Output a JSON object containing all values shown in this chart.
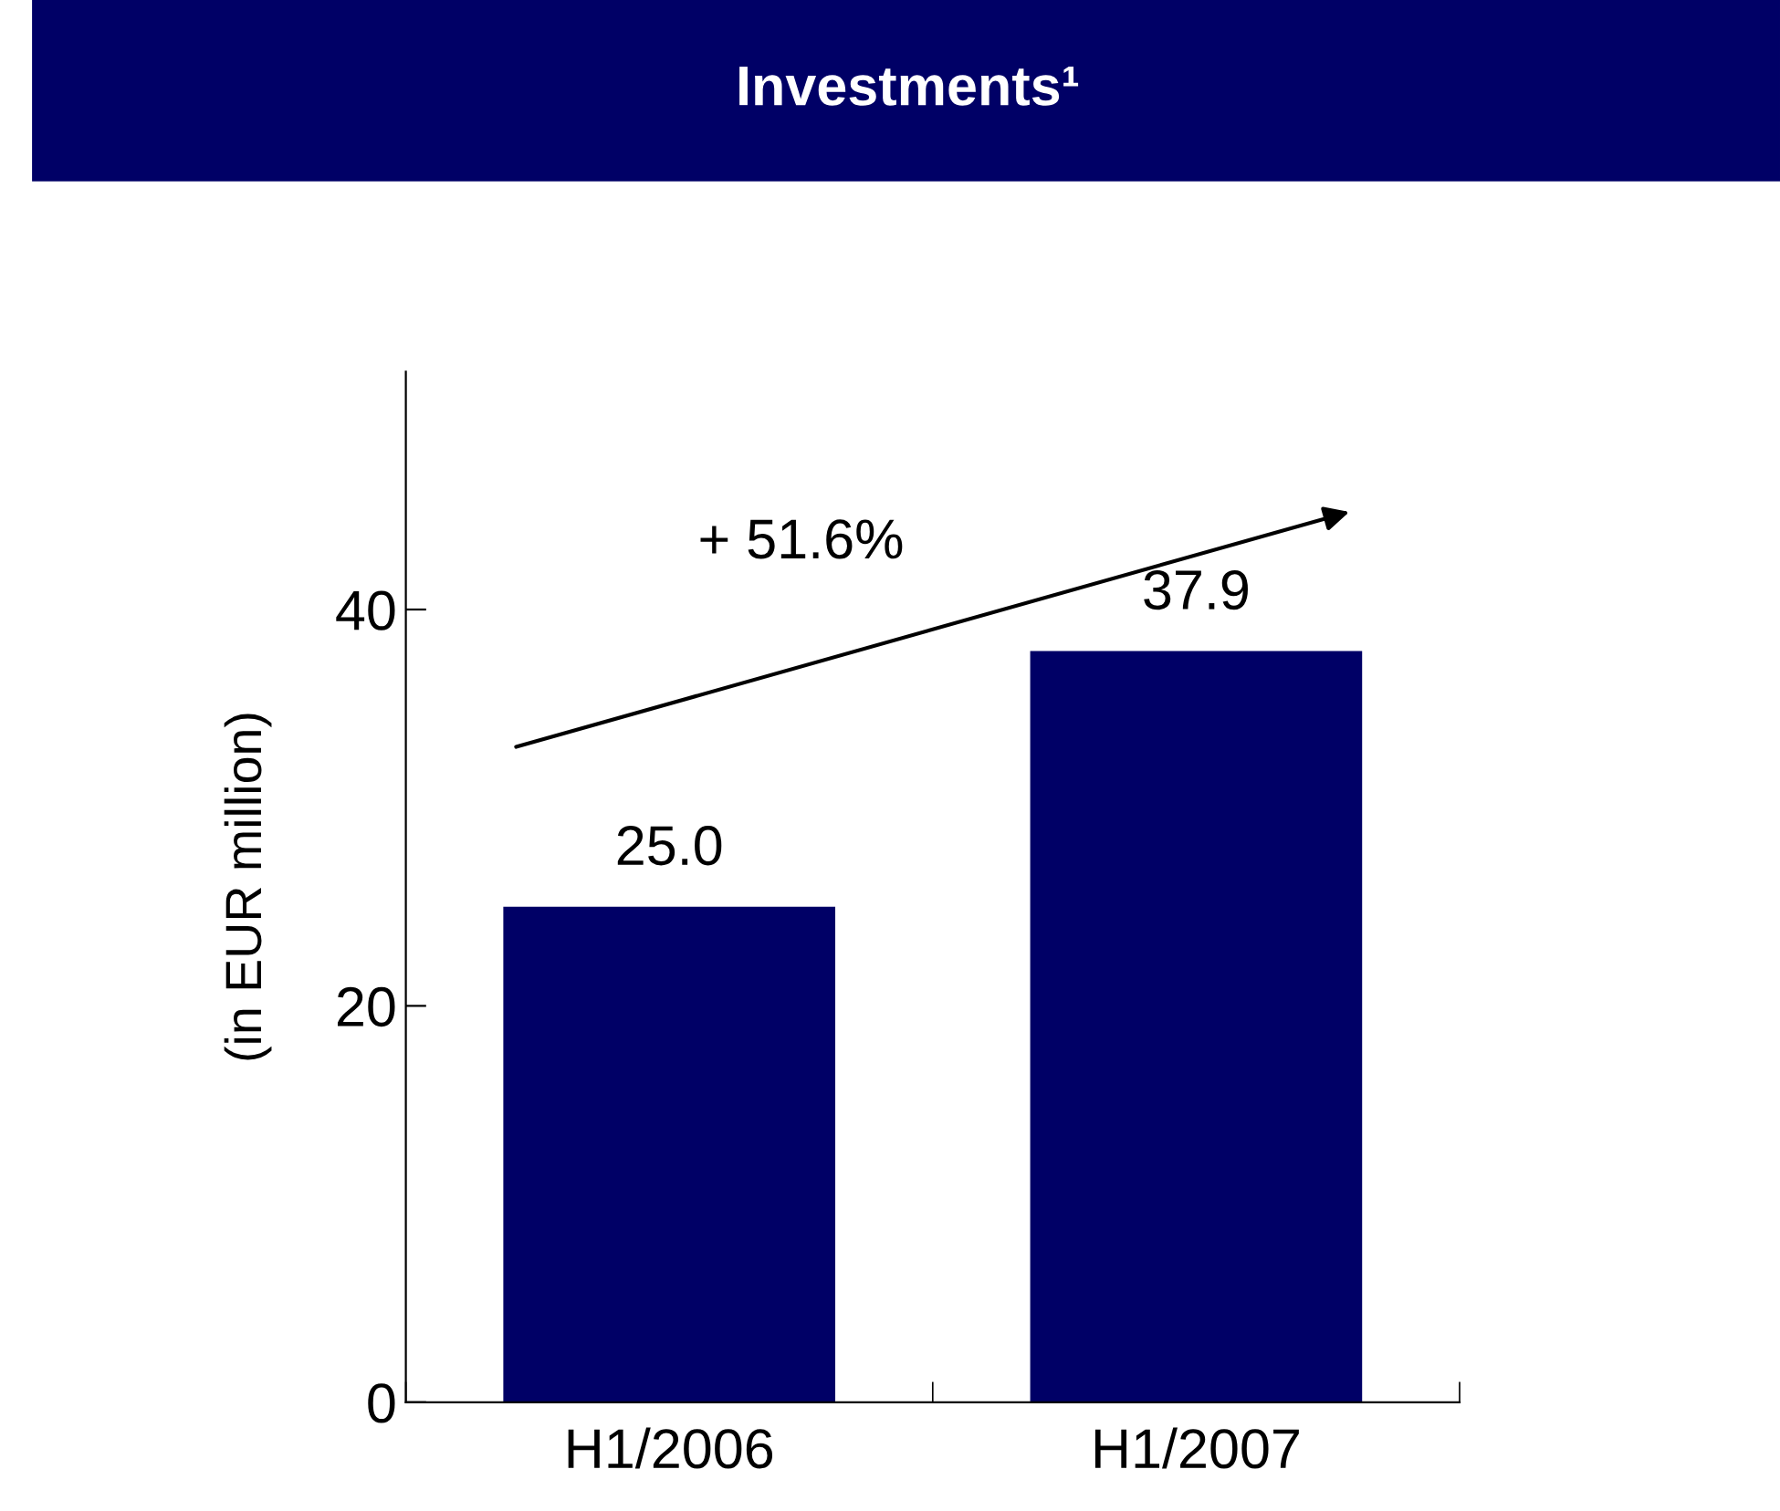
{
  "chart_data": {
    "type": "bar",
    "title": "Investments¹",
    "ylabel": "(in EUR million)",
    "categories": [
      "H1/2006",
      "H1/2007"
    ],
    "values": [
      25.0,
      37.9
    ],
    "color": "#000066",
    "ylim": [
      0,
      52
    ],
    "yticks": [
      0,
      20,
      40
    ],
    "grid": false,
    "value_labels": [
      "25.0",
      "37.9"
    ],
    "annotations": [
      "+ 51.6%"
    ]
  }
}
